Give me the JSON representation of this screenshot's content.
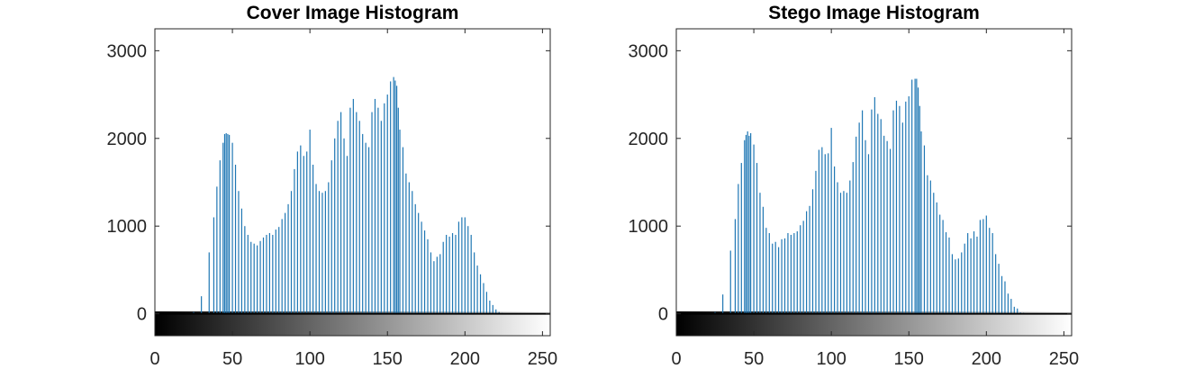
{
  "chart_data": [
    {
      "type": "bar",
      "title": "Cover Image Histogram",
      "xlabel": "",
      "ylabel": "",
      "xlim": [
        0,
        255
      ],
      "ylim": [
        -250,
        3250
      ],
      "yticks": [
        0,
        1000,
        2000,
        3000
      ],
      "xticks": [
        0,
        50,
        100,
        150,
        200,
        250
      ],
      "ytick_labels": [
        "0",
        "1000",
        "2000",
        "3000"
      ],
      "xtick_labels": [
        "0",
        "50",
        "100",
        "150",
        "200",
        "250"
      ],
      "colorbar": "grayscale gradient 0-255 below axis",
      "bar_color": "#1f77b4",
      "x": [
        25,
        30,
        35,
        38,
        40,
        42,
        44,
        45,
        46,
        47,
        48,
        50,
        52,
        54,
        56,
        58,
        60,
        62,
        64,
        66,
        68,
        70,
        72,
        74,
        76,
        78,
        80,
        82,
        84,
        86,
        88,
        90,
        92,
        94,
        96,
        98,
        100,
        102,
        104,
        106,
        108,
        110,
        112,
        114,
        116,
        118,
        120,
        122,
        124,
        126,
        128,
        130,
        132,
        134,
        136,
        138,
        140,
        142,
        144,
        146,
        148,
        150,
        152,
        154,
        155,
        156,
        157,
        158,
        160,
        162,
        164,
        166,
        168,
        170,
        172,
        174,
        176,
        178,
        180,
        182,
        184,
        186,
        188,
        190,
        192,
        194,
        196,
        198,
        200,
        202,
        204,
        206,
        208,
        210,
        212,
        214,
        216,
        218,
        220,
        222,
        224,
        226,
        228,
        230
      ],
      "values": [
        20,
        200,
        700,
        1100,
        1450,
        1750,
        1950,
        2050,
        2060,
        2050,
        2040,
        1950,
        1700,
        1400,
        1200,
        1000,
        900,
        820,
        800,
        780,
        830,
        870,
        900,
        920,
        900,
        960,
        990,
        1080,
        1150,
        1250,
        1400,
        1650,
        1850,
        1920,
        1800,
        1850,
        2100,
        1700,
        1480,
        1400,
        1380,
        1400,
        1500,
        1750,
        2000,
        2200,
        2300,
        2000,
        1800,
        2350,
        2450,
        2300,
        2200,
        2050,
        1950,
        1900,
        2300,
        2450,
        2350,
        2200,
        2400,
        2500,
        2650,
        2700,
        2660,
        2600,
        2350,
        2100,
        1900,
        1600,
        1500,
        1400,
        1250,
        1150,
        1050,
        950,
        850,
        700,
        600,
        650,
        680,
        820,
        900,
        880,
        920,
        900,
        1050,
        1100,
        1100,
        1000,
        900,
        700,
        550,
        450,
        350,
        250,
        150,
        100,
        50,
        20,
        10,
        5,
        0,
        0
      ]
    },
    {
      "type": "bar",
      "title": "Stego Image Histogram",
      "xlabel": "",
      "ylabel": "",
      "xlim": [
        0,
        255
      ],
      "ylim": [
        -250,
        3250
      ],
      "yticks": [
        0,
        1000,
        2000,
        3000
      ],
      "xticks": [
        0,
        50,
        100,
        150,
        200,
        250
      ],
      "ytick_labels": [
        "0",
        "1000",
        "2000",
        "3000"
      ],
      "xtick_labels": [
        "0",
        "50",
        "100",
        "150",
        "200",
        "250"
      ],
      "colorbar": "grayscale gradient 0-255 below axis",
      "bar_color": "#1f77b4",
      "x": [
        25,
        30,
        35,
        38,
        40,
        42,
        44,
        45,
        46,
        47,
        48,
        50,
        52,
        54,
        56,
        58,
        60,
        62,
        64,
        66,
        68,
        70,
        72,
        74,
        76,
        78,
        80,
        82,
        84,
        86,
        88,
        90,
        92,
        94,
        96,
        98,
        100,
        102,
        104,
        106,
        108,
        110,
        112,
        114,
        116,
        118,
        120,
        122,
        124,
        126,
        128,
        130,
        132,
        134,
        136,
        138,
        140,
        142,
        144,
        146,
        148,
        150,
        152,
        154,
        155,
        156,
        157,
        158,
        160,
        162,
        164,
        166,
        168,
        170,
        172,
        174,
        176,
        178,
        180,
        182,
        184,
        186,
        188,
        190,
        192,
        194,
        196,
        198,
        200,
        202,
        204,
        206,
        208,
        210,
        212,
        214,
        216,
        218,
        220,
        222,
        224,
        226,
        228,
        230
      ],
      "values": [
        20,
        220,
        720,
        1080,
        1480,
        1720,
        1980,
        2040,
        2080,
        2030,
        2060,
        1930,
        1720,
        1380,
        1220,
        980,
        920,
        800,
        820,
        760,
        850,
        860,
        920,
        900,
        920,
        940,
        1010,
        1060,
        1170,
        1230,
        1420,
        1630,
        1870,
        1900,
        1820,
        1830,
        2120,
        1680,
        1500,
        1380,
        1400,
        1380,
        1520,
        1730,
        2020,
        2180,
        2320,
        1980,
        1820,
        2330,
        2470,
        2280,
        2220,
        2030,
        1970,
        1880,
        2320,
        2430,
        2370,
        2180,
        2420,
        2480,
        2670,
        2680,
        2680,
        2580,
        2370,
        2080,
        1920,
        1580,
        1520,
        1380,
        1270,
        1130,
        1070,
        930,
        870,
        680,
        620,
        630,
        700,
        800,
        920,
        860,
        940,
        880,
        1070,
        1080,
        1120,
        980,
        920,
        680,
        570,
        430,
        370,
        230,
        170,
        80,
        60,
        15,
        12,
        3,
        0,
        0
      ]
    }
  ]
}
